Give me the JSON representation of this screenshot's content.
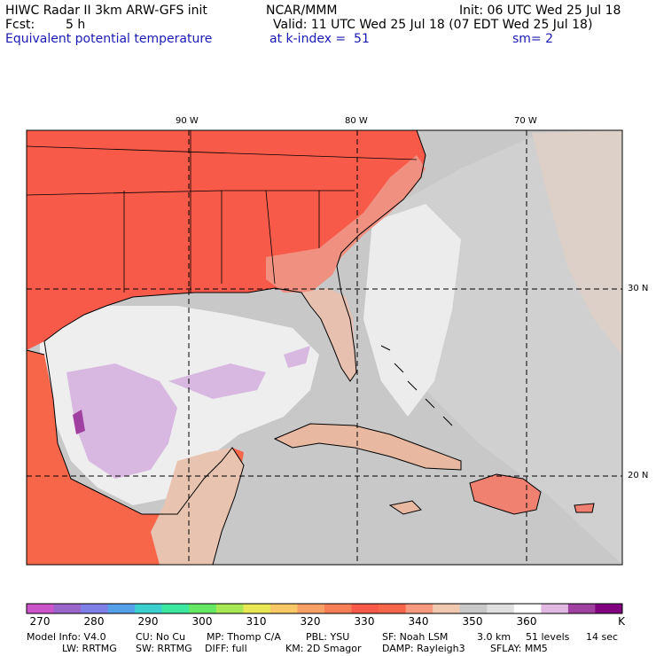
{
  "header": {
    "title": "HIWC Radar II 3km ARW-GFS init",
    "org": "NCAR/MMM",
    "init": "Init: 06 UTC Wed 25 Jul 18",
    "fcst_label": "Fcst:",
    "fcst_value": "5 h",
    "valid": "Valid: 11 UTC Wed 25 Jul 18 (07 EDT Wed 25 Jul 18)",
    "field": "Equivalent potential temperature",
    "level": "at k-index =  51",
    "smoothing": "sm= 2"
  },
  "map": {
    "lon_labels": [
      "90 W",
      "80 W",
      "70 W"
    ],
    "lat_labels": [
      "30 N",
      "20 N"
    ]
  },
  "colorbar": {
    "tick_labels": [
      "270",
      "280",
      "290",
      "300",
      "310",
      "320",
      "330",
      "340",
      "350",
      "360"
    ],
    "unit": "K",
    "colors": [
      "#cc55cc",
      "#9a66cc",
      "#7f7fe8",
      "#55a0e8",
      "#3ccfcf",
      "#3ce8a0",
      "#66e866",
      "#a8e855",
      "#e8e855",
      "#f8c866",
      "#f8a066",
      "#f87f55",
      "#f85a4a",
      "#f8664a",
      "#f89a80",
      "#f0c8b0",
      "#c8c8c8",
      "#e0e0e0",
      "#ffffff",
      "#e0b8e0",
      "#a040a0",
      "#800080"
    ]
  },
  "footer": {
    "line1": [
      "Model Info: V4.0",
      "CU: No Cu",
      "MP: Thomp C/A",
      "PBL: YSU",
      "SF: Noah LSM",
      "3.0 km",
      "51 levels",
      "14 sec"
    ],
    "line2": [
      "LW: RRTMG",
      "SW: RRTMG",
      "DIFF: full",
      "KM: 2D Smagor",
      "DAMP: Rayleigh3",
      "SFLAY: MM5"
    ]
  }
}
